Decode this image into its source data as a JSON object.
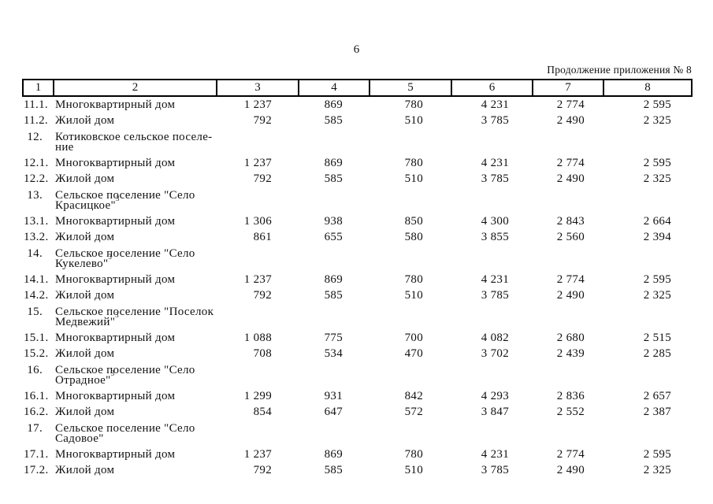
{
  "page": {
    "number": "6",
    "continuation": "Продолжение приложения № 8"
  },
  "table": {
    "header": [
      "1",
      "2",
      "3",
      "4",
      "5",
      "6",
      "7",
      "8"
    ],
    "rows": [
      {
        "num": "11.1.",
        "label": "Многоквартирный дом",
        "values": [
          "1 237",
          "869",
          "780",
          "4 231",
          "2 774",
          "2 595"
        ]
      },
      {
        "num": "11.2.",
        "label": "Жилой дом",
        "values": [
          "792",
          "585",
          "510",
          "3 785",
          "2 490",
          "2 325"
        ]
      },
      {
        "num": "12.",
        "lines": [
          "Котиковское сельское поселе-",
          "ние"
        ],
        "sup": null
      },
      {
        "num": "12.1.",
        "label": "Многоквартирный дом",
        "values": [
          "1 237",
          "869",
          "780",
          "4 231",
          "2 774",
          "2 595"
        ]
      },
      {
        "num": "12.2.",
        "label": "Жилой дом",
        "values": [
          "792",
          "585",
          "510",
          "3 785",
          "2 490",
          "2 325"
        ]
      },
      {
        "num": "13.",
        "lines": [
          "Сельское поселение \"Село",
          "Красицкое\""
        ],
        "sup": "3"
      },
      {
        "num": "13.1.",
        "label": "Многоквартирный дом",
        "values": [
          "1 306",
          "938",
          "850",
          "4 300",
          "2 843",
          "2 664"
        ]
      },
      {
        "num": "13.2.",
        "label": "Жилой дом",
        "values": [
          "861",
          "655",
          "580",
          "3 855",
          "2 560",
          "2 394"
        ]
      },
      {
        "num": "14.",
        "lines": [
          "Сельское поселение \"Село",
          "Кукелево\""
        ],
        "sup": "3"
      },
      {
        "num": "14.1.",
        "label": "Многоквартирный дом",
        "values": [
          "1 237",
          "869",
          "780",
          "4 231",
          "2 774",
          "2 595"
        ]
      },
      {
        "num": "14.2.",
        "label": "Жилой дом",
        "values": [
          "792",
          "585",
          "510",
          "3 785",
          "2 490",
          "2 325"
        ]
      },
      {
        "num": "15.",
        "lines": [
          "Сельское поселение \"Поселок",
          "Медвежий\""
        ],
        "sup": "3"
      },
      {
        "num": "15.1.",
        "label": "Многоквартирный дом",
        "values": [
          "1 088",
          "775",
          "700",
          "4 082",
          "2 680",
          "2 515"
        ]
      },
      {
        "num": "15.2.",
        "label": "Жилой дом",
        "values": [
          "708",
          "534",
          "470",
          "3 702",
          "2 439",
          "2 285"
        ]
      },
      {
        "num": "16.",
        "lines": [
          "Сельское поселение \"Село",
          "Отрадное\""
        ],
        "sup": "3"
      },
      {
        "num": "16.1.",
        "label": "Многоквартирный дом",
        "values": [
          "1 299",
          "931",
          "842",
          "4 293",
          "2 836",
          "2 657"
        ]
      },
      {
        "num": "16.2.",
        "label": "Жилой дом",
        "values": [
          "854",
          "647",
          "572",
          "3 847",
          "2 552",
          "2 387"
        ]
      },
      {
        "num": "17.",
        "lines": [
          "Сельское поселение \"Село",
          "Садовое\""
        ],
        "sup": null
      },
      {
        "num": "17.1.",
        "label": "Многоквартирный дом",
        "values": [
          "1 237",
          "869",
          "780",
          "4 231",
          "2 774",
          "2 595"
        ]
      },
      {
        "num": "17.2.",
        "label": "Жилой дом",
        "values": [
          "792",
          "585",
          "510",
          "3 785",
          "2 490",
          "2 325"
        ]
      }
    ]
  }
}
